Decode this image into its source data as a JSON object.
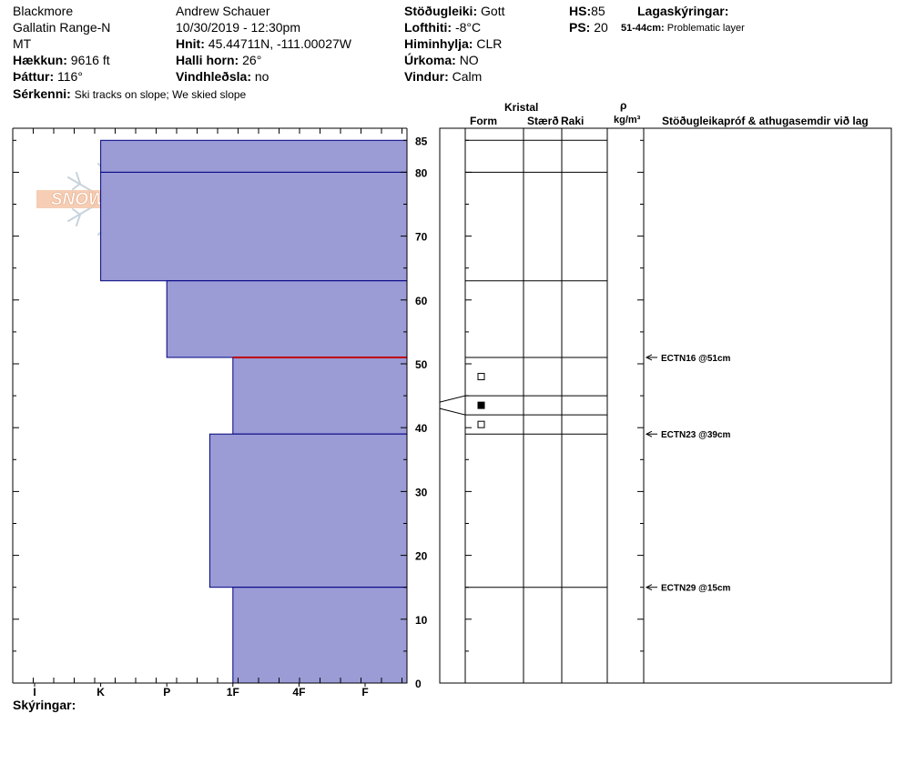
{
  "header": {
    "location": "Blackmore",
    "range": "Gallatin Range-N",
    "state": "MT",
    "elevation_label": "Hækkun:",
    "elevation": "9616 ft",
    "aspect_label": "Þáttur:",
    "aspect": "116°",
    "features_label": "Sérkenni:",
    "features": "Ski tracks on slope; We skied slope",
    "observer": "Andrew Schauer",
    "datetime": "10/30/2019 - 12:30pm",
    "coords_label": "Hnit:",
    "coords": "45.44711N, -111.00027W",
    "slope_label": "Halli horn:",
    "slope": "26°",
    "wind_loading_label": "Vindhleðsla:",
    "wind_loading": "no",
    "stability_label": "Stöðugleiki:",
    "stability": "Gott",
    "air_temp_label": "Lofthiti:",
    "air_temp": "-8°C",
    "sky_label": "Himinhylja:",
    "sky": "CLR",
    "precip_label": "Úrkoma:",
    "precip": "NO",
    "wind_label": "Vindur:",
    "wind": "Calm",
    "hs_label": "HS:",
    "hs": "85",
    "ps_label": "PS:",
    "ps": "20",
    "layer_notes_label": "Lagaskýringar:",
    "layer_note_range": "51-44cm:",
    "layer_note_text": "Problematic layer"
  },
  "table_headers": {
    "crystal": "Kristal",
    "form": "Form",
    "size": "Stærð",
    "moisture": "Raki",
    "rho": "ρ",
    "density_unit": "kg/m³",
    "comments": "Stöðugleikapróf & athugasemdir við lag"
  },
  "footer": {
    "legend_label": "Skýringar:"
  },
  "logo": {
    "text": "SNOW PILOT"
  },
  "chart_data": {
    "type": "bar",
    "orientation": "horizontal",
    "title": "",
    "xlabel": "",
    "ylabel": "",
    "ylim": [
      0,
      85
    ],
    "yticks": [
      0,
      10,
      20,
      30,
      40,
      50,
      60,
      70,
      80,
      85
    ],
    "hardness_scale": [
      "I",
      "K",
      "P",
      "1F",
      "4F",
      "F"
    ],
    "hardness_ticks": [
      0,
      2,
      4,
      6,
      8,
      10
    ],
    "hardness_max": 11.3,
    "layers": [
      {
        "bottom": 80,
        "top": 85,
        "hardness": 2
      },
      {
        "bottom": 63,
        "top": 80,
        "hardness": 2
      },
      {
        "bottom": 51,
        "top": 63,
        "hardness": 4
      },
      {
        "bottom": 39,
        "top": 51,
        "hardness": 6
      },
      {
        "bottom": 43,
        "top": 44,
        "hardness": 11.3
      },
      {
        "bottom": 15,
        "top": 39,
        "hardness": 5.3
      },
      {
        "bottom": 0,
        "top": 15,
        "hardness": 6
      }
    ],
    "problem_line": 51,
    "grain_symbols": [
      {
        "depth": 48,
        "filled": false
      },
      {
        "depth": 43.5,
        "filled": true
      },
      {
        "depth": 40.5,
        "filled": false
      }
    ],
    "layer_boundaries": [
      85,
      80,
      63,
      51,
      45,
      42,
      39,
      15
    ],
    "tests": [
      {
        "depth": 51,
        "label": "ECTN16 @51cm"
      },
      {
        "depth": 39,
        "label": "ECTN23 @39cm"
      },
      {
        "depth": 15,
        "label": "ECTN29 @15cm"
      }
    ],
    "colors": {
      "fill": "#9b9bd6",
      "stroke": "#000080",
      "problem": "#c00000"
    }
  }
}
